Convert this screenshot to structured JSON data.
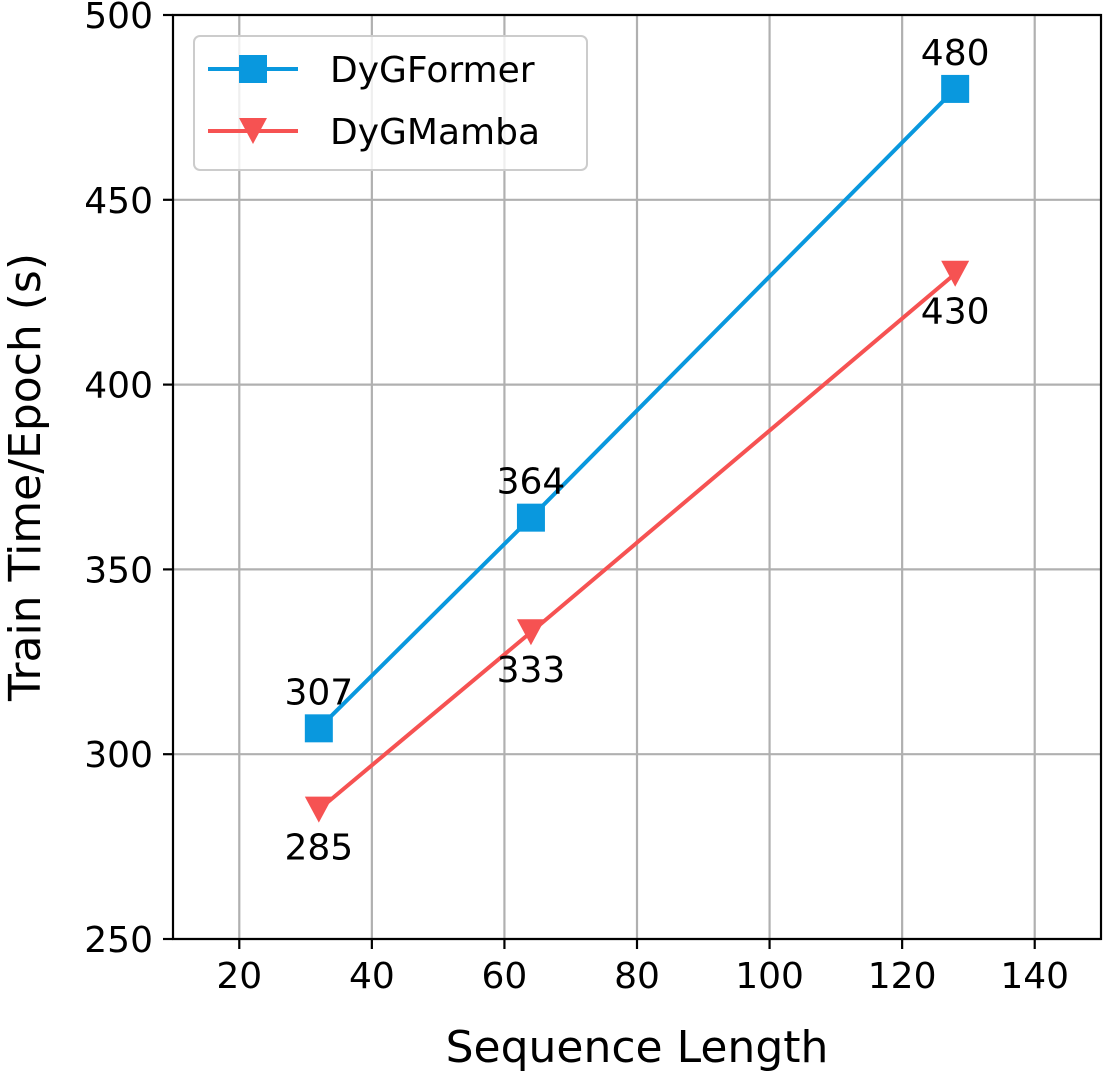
{
  "chart_data": {
    "type": "line",
    "title": "",
    "xlabel": "Sequence Length",
    "ylabel": "Train Time/Epoch (s)",
    "xlim": [
      10,
      150
    ],
    "ylim": [
      250,
      500
    ],
    "xticks": [
      20,
      40,
      60,
      80,
      100,
      120,
      140
    ],
    "yticks": [
      250,
      300,
      350,
      400,
      450,
      500
    ],
    "grid": true,
    "legend_position": "top-left",
    "series": [
      {
        "name": "DyGFormer",
        "color": "#0998de",
        "marker": "square",
        "x": [
          32,
          64,
          128
        ],
        "y": [
          307,
          364,
          480
        ],
        "labels": [
          "307",
          "364",
          "480"
        ],
        "label_position": "above"
      },
      {
        "name": "DyGMamba",
        "color": "#f65252",
        "marker": "triangle-down",
        "x": [
          32,
          64,
          128
        ],
        "y": [
          285,
          333,
          430
        ],
        "labels": [
          "285",
          "333",
          "430"
        ],
        "label_position": "below"
      }
    ]
  }
}
